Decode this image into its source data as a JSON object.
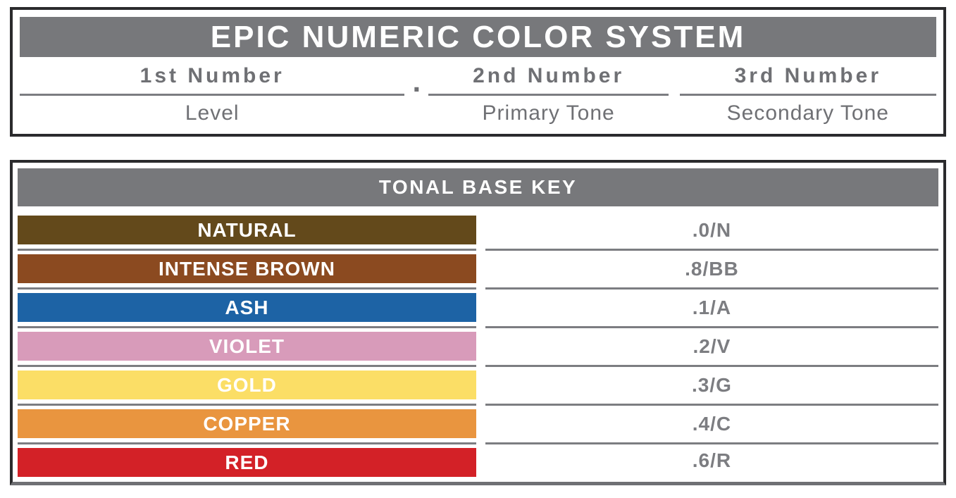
{
  "system": {
    "title": "EPIC NUMERIC COLOR SYSTEM",
    "separator": ".",
    "columns": [
      {
        "number": "1st Number",
        "label": "Level"
      },
      {
        "number": "2nd Number",
        "label": "Primary Tone"
      },
      {
        "number": "3rd Number",
        "label": "Secondary Tone"
      }
    ]
  },
  "tonal_key": {
    "title": "TONAL BASE KEY",
    "rows": [
      {
        "name": "NATURAL",
        "code": ".0/N",
        "color": "#63491B"
      },
      {
        "name": "INTENSE BROWN",
        "code": ".8/BB",
        "color": "#8B4A20"
      },
      {
        "name": "ASH",
        "code": ".1/A",
        "color": "#1D63A5"
      },
      {
        "name": "VIOLET",
        "code": ".2/V",
        "color": "#D89BBA"
      },
      {
        "name": "GOLD",
        "code": ".3/G",
        "color": "#FBDE66"
      },
      {
        "name": "COPPER",
        "code": ".4/C",
        "color": "#E9953F"
      },
      {
        "name": "RED",
        "code": ".6/R",
        "color": "#D32127"
      }
    ]
  },
  "colors": {
    "panel_gray": "#77787B",
    "text_gray": "#6F7074",
    "line_gray": "#7C7D81",
    "border_dark": "#2B2B2D",
    "label_white": "#FFFFFF"
  }
}
